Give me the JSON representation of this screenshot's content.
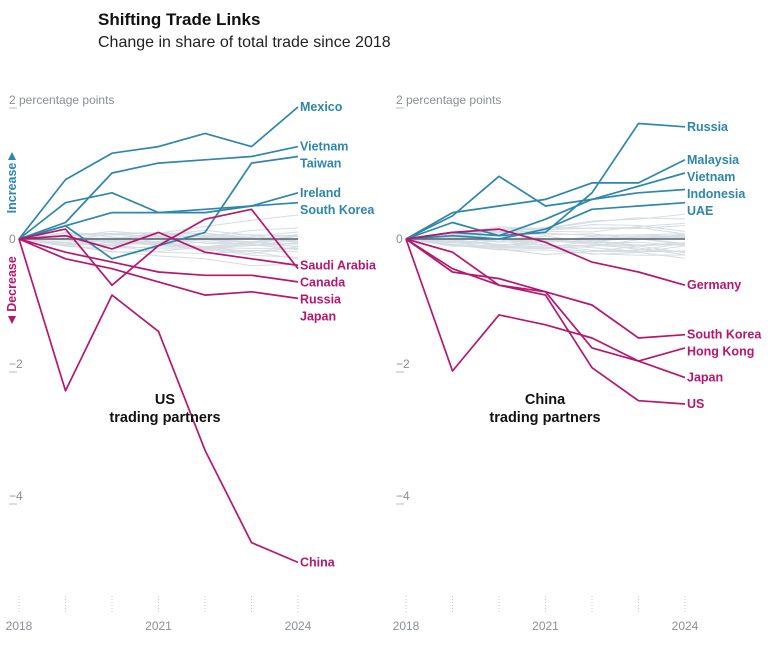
{
  "title": "Shifting Trade Links",
  "subtitle": "Change in share of total trade since 2018",
  "colors": {
    "increase": "#2e86ab",
    "decrease": "#b5176f",
    "background_lines": "#d5dde3",
    "zero_line": "#55606b",
    "axis_text": "#8a8f96"
  },
  "chart_data": [
    {
      "type": "line",
      "title": "US trading partners",
      "title_lines": [
        "US",
        "trading partners"
      ],
      "ylabel_increase": "Increase",
      "ylabel_decrease": "Decrease",
      "y_unit_label": "2 percentage points",
      "ylim": [
        -5.6,
        2.3
      ],
      "y_ticks": [
        {
          "value": 2,
          "label": "2 percentage points"
        },
        {
          "value": 0,
          "label": "0"
        },
        {
          "value": -2,
          "label": "−2"
        },
        {
          "value": -4,
          "label": "−4"
        }
      ],
      "x": [
        2018,
        2019,
        2020,
        2021,
        2022,
        2023,
        2024
      ],
      "x_tick_labels": [
        {
          "value": 2018,
          "label": "2018"
        },
        {
          "value": 2021,
          "label": "2021"
        },
        {
          "value": 2024,
          "label": "2024"
        }
      ],
      "series": [
        {
          "name": "Vietnam",
          "group": "increase",
          "values": [
            0,
            0.25,
            1.0,
            1.15,
            1.2,
            1.25,
            1.4
          ]
        },
        {
          "name": "Mexico",
          "group": "increase",
          "values": [
            0,
            0.9,
            1.3,
            1.4,
            1.6,
            1.4,
            2.0
          ]
        },
        {
          "name": "Taiwan",
          "group": "increase",
          "values": [
            0,
            0.2,
            -0.3,
            -0.1,
            0.1,
            1.15,
            1.25
          ]
        },
        {
          "name": "Ireland",
          "group": "increase",
          "values": [
            0,
            0.55,
            0.7,
            0.4,
            0.4,
            0.5,
            0.7
          ]
        },
        {
          "name": "South Korea",
          "group": "increase",
          "values": [
            0,
            0.2,
            0.4,
            0.4,
            0.45,
            0.5,
            0.55
          ]
        },
        {
          "name": "Saudi Arabia",
          "group": "decrease",
          "values": [
            0,
            0.05,
            -0.15,
            0.1,
            -0.2,
            -0.3,
            -0.4
          ]
        },
        {
          "name": "Canada",
          "group": "decrease",
          "values": [
            0,
            0.15,
            -0.7,
            -0.1,
            0.3,
            0.45,
            -0.45
          ]
        },
        {
          "name": "Russia",
          "group": "decrease",
          "values": [
            0,
            -0.2,
            -0.35,
            -0.5,
            -0.55,
            -0.55,
            -0.65
          ]
        },
        {
          "name": "Japan",
          "group": "decrease",
          "values": [
            0,
            -0.3,
            -0.45,
            -0.65,
            -0.85,
            -0.8,
            -0.9
          ]
        },
        {
          "name": "China",
          "group": "decrease",
          "values": [
            0,
            -2.3,
            -0.85,
            -1.4,
            -3.2,
            -4.6,
            -4.9
          ]
        }
      ]
    },
    {
      "type": "line",
      "title": "China trading partners",
      "title_lines": [
        "China",
        "trading partners"
      ],
      "y_unit_label": "2 percentage points",
      "ylim": [
        -5.6,
        2.3
      ],
      "y_ticks": [
        {
          "value": 2,
          "label": "2 percentage points"
        },
        {
          "value": 0,
          "label": "0"
        },
        {
          "value": -2,
          "label": "−2"
        },
        {
          "value": -4,
          "label": "−4"
        }
      ],
      "x": [
        2018,
        2019,
        2020,
        2021,
        2022,
        2023,
        2024
      ],
      "x_tick_labels": [
        {
          "value": 2018,
          "label": "2018"
        },
        {
          "value": 2021,
          "label": "2021"
        },
        {
          "value": 2024,
          "label": "2024"
        }
      ],
      "series": [
        {
          "name": "Russia",
          "group": "increase",
          "values": [
            0,
            0.25,
            0.05,
            0.1,
            0.7,
            1.75,
            1.7
          ]
        },
        {
          "name": "Malaysia",
          "group": "increase",
          "values": [
            0,
            0.4,
            0.5,
            0.6,
            0.85,
            0.85,
            1.2
          ]
        },
        {
          "name": "Vietnam",
          "group": "increase",
          "values": [
            0,
            0.35,
            0.95,
            0.5,
            0.6,
            0.8,
            1.0
          ]
        },
        {
          "name": "Indonesia",
          "group": "increase",
          "values": [
            0,
            0.1,
            0.05,
            0.3,
            0.6,
            0.7,
            0.75
          ]
        },
        {
          "name": "UAE",
          "group": "increase",
          "values": [
            0,
            0.05,
            0.0,
            0.15,
            0.45,
            0.5,
            0.55
          ]
        },
        {
          "name": "Germany",
          "group": "decrease",
          "values": [
            0,
            0.1,
            0.15,
            -0.05,
            -0.35,
            -0.5,
            -0.7
          ]
        },
        {
          "name": "South Korea",
          "group": "decrease",
          "values": [
            0,
            -0.45,
            -0.7,
            -0.8,
            -1.0,
            -1.5,
            -1.45
          ]
        },
        {
          "name": "Hong Kong",
          "group": "decrease",
          "values": [
            0,
            -0.5,
            -0.6,
            -0.8,
            -1.65,
            -1.85,
            -1.65
          ]
        },
        {
          "name": "Japan",
          "group": "decrease",
          "values": [
            0,
            -2.0,
            -1.15,
            -1.3,
            -1.5,
            -1.85,
            -2.1
          ]
        },
        {
          "name": "US",
          "group": "decrease",
          "values": [
            0,
            -0.2,
            -0.7,
            -0.85,
            -1.95,
            -2.45,
            -2.5
          ]
        }
      ]
    }
  ]
}
